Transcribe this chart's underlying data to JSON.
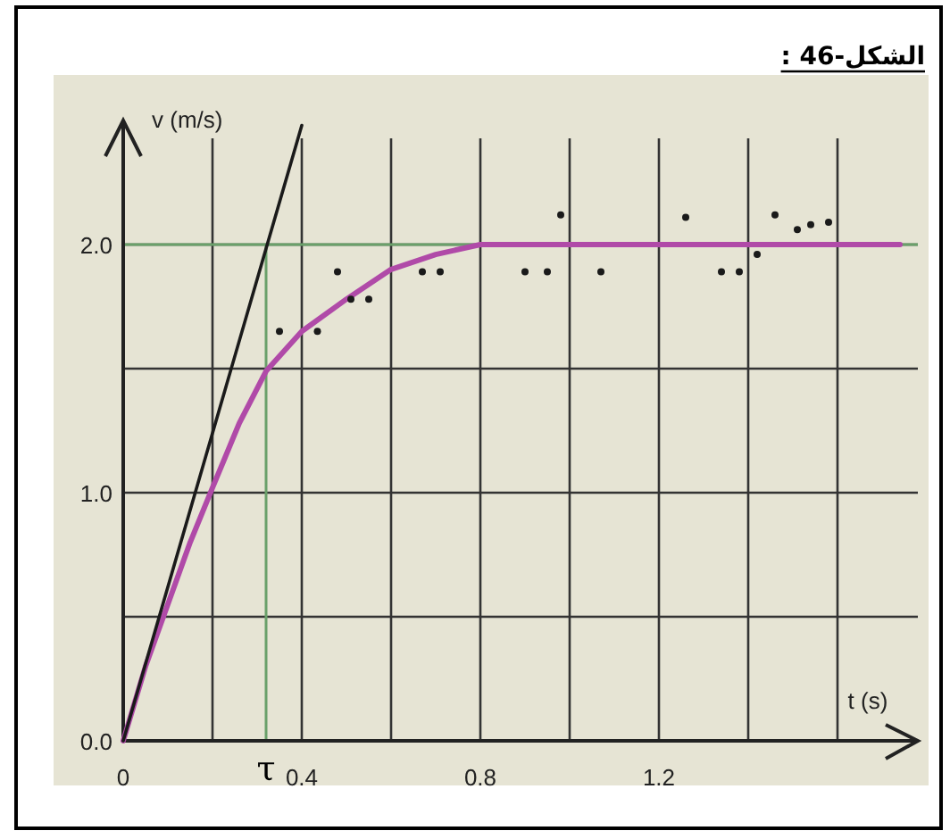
{
  "chart_data": {
    "type": "line",
    "title": "الشكل-46 :",
    "xlabel": "t (s)",
    "ylabel": "v (m/s)",
    "xlim": [
      0,
      1.78
    ],
    "ylim": [
      0,
      2.5
    ],
    "xticks": [
      0,
      {
        "value": 0.2,
        "label": null
      },
      0.4,
      {
        "value": 0.6,
        "label": null
      },
      0.8,
      {
        "value": 1.0,
        "label": null
      },
      1.2,
      {
        "value": 1.4,
        "label": null
      },
      {
        "value": 1.6,
        "label": null
      }
    ],
    "yticks": [
      {
        "value": 0,
        "label": "0.0"
      },
      {
        "value": 0.5,
        "label": null
      },
      {
        "value": 1,
        "label": "1.0"
      },
      {
        "value": 1.5,
        "label": null
      },
      {
        "value": 2,
        "label": "2.0"
      }
    ],
    "grid": true,
    "ref_lines": [
      {
        "axis": "y",
        "value": 2.0,
        "color": "#6aa06a"
      },
      {
        "axis": "x",
        "value": 0.32,
        "label": "τ",
        "color": "#6aa06a"
      }
    ],
    "series": [
      {
        "color": "#b04aa8",
        "x": [
          0,
          0.05,
          0.1,
          0.15,
          0.2,
          0.26,
          0.32,
          0.4,
          0.5,
          0.6,
          0.7,
          0.8,
          1.0,
          1.2,
          1.4,
          1.6,
          1.74
        ],
        "values": [
          0,
          0.3,
          0.55,
          0.8,
          1.02,
          1.28,
          1.49,
          1.65,
          1.78,
          1.9,
          1.96,
          2.0,
          2.0,
          2.0,
          2.0,
          2.0,
          2.0
        ]
      },
      {
        "type": "line",
        "color": "#1a1a1a",
        "x": [
          0,
          0.4
        ],
        "values": [
          0,
          2.48
        ]
      },
      {
        "type": "scatter",
        "color": "#1a1a1a",
        "marker": "circle",
        "x": [
          0.35,
          0.435,
          0.48,
          0.51,
          0.55,
          0.67,
          0.71,
          0.9,
          0.95,
          0.98,
          1.07,
          1.26,
          1.34,
          1.38,
          1.42,
          1.46,
          1.51,
          1.54,
          1.58
        ],
        "values": [
          1.65,
          1.65,
          1.89,
          1.78,
          1.78,
          1.89,
          1.89,
          1.89,
          1.89,
          2.12,
          1.89,
          2.11,
          1.89,
          1.89,
          1.96,
          2.12,
          2.06,
          2.08,
          2.09
        ]
      }
    ]
  }
}
